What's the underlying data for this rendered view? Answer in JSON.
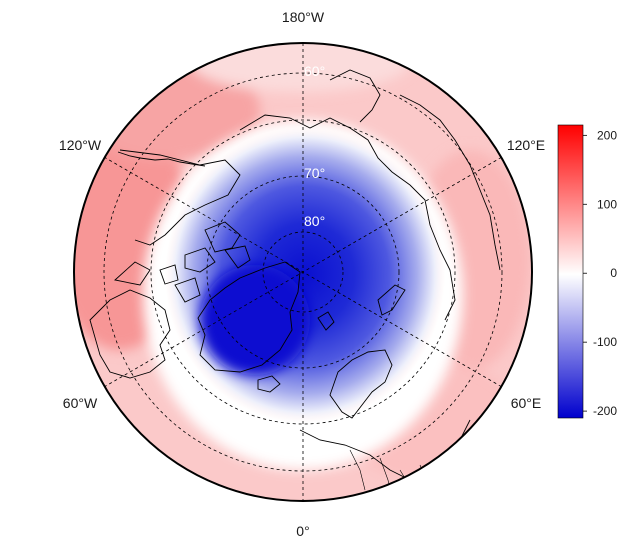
{
  "map": {
    "projection": "north-polar-stereographic",
    "center": "north-pole",
    "min_latitude": 40,
    "longitude_labels": {
      "top": "180°W",
      "upper_left": "120°W",
      "upper_right": "120°E",
      "lower_left": "60°W",
      "lower_right": "60°E",
      "bottom": "0°"
    },
    "latitude_labels": [
      "60°",
      "70°",
      "80°"
    ],
    "latitude_circles": [
      50,
      60,
      70,
      80
    ],
    "gridline_style": "dashed"
  },
  "colorbar": {
    "ticks": [
      "200",
      "100",
      "0",
      "-100",
      "-200"
    ],
    "min": -210,
    "max": 215,
    "colors": {
      "high": "#ff0000",
      "mid": "#ffffff",
      "low": "#0000cd"
    }
  }
}
